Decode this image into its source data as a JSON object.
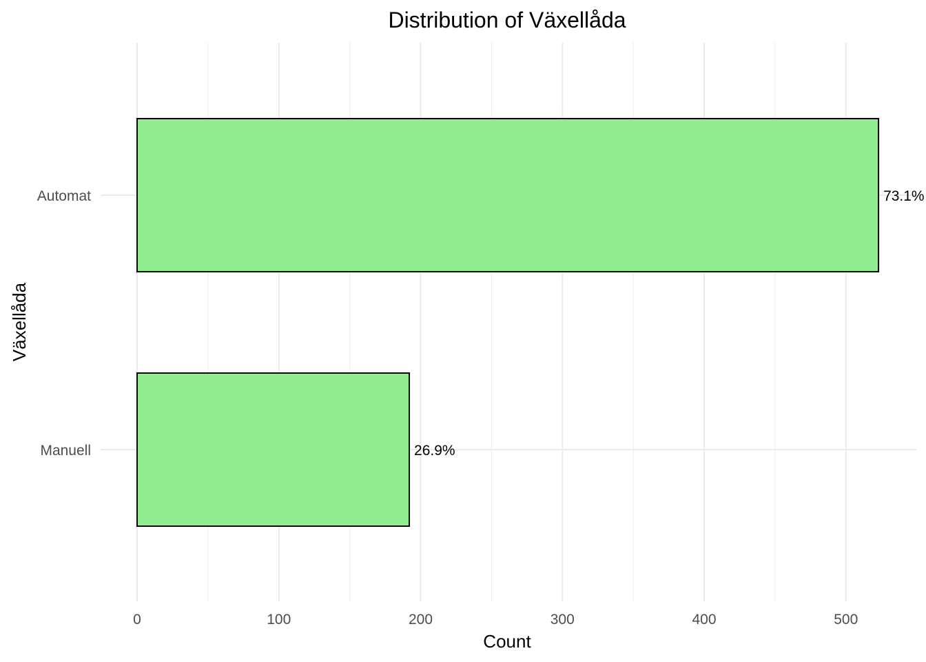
{
  "chart_data": {
    "type": "bar",
    "orientation": "horizontal",
    "title": "Distribution of  Växellåda",
    "xlabel": "Count",
    "ylabel": "Växellåda",
    "categories": [
      "Automat",
      "Manuell"
    ],
    "values": [
      523,
      192
    ],
    "data_labels": [
      "73.1%",
      "26.9%"
    ],
    "xlim": [
      0,
      550
    ],
    "x_ticks": [
      0,
      100,
      200,
      300,
      400,
      500
    ],
    "x_tick_labels": [
      "0",
      "100",
      "200",
      "300",
      "400",
      "500"
    ],
    "bar_color": "#90ee90",
    "bar_outline": "#000000",
    "grid": true,
    "legend": "none"
  }
}
